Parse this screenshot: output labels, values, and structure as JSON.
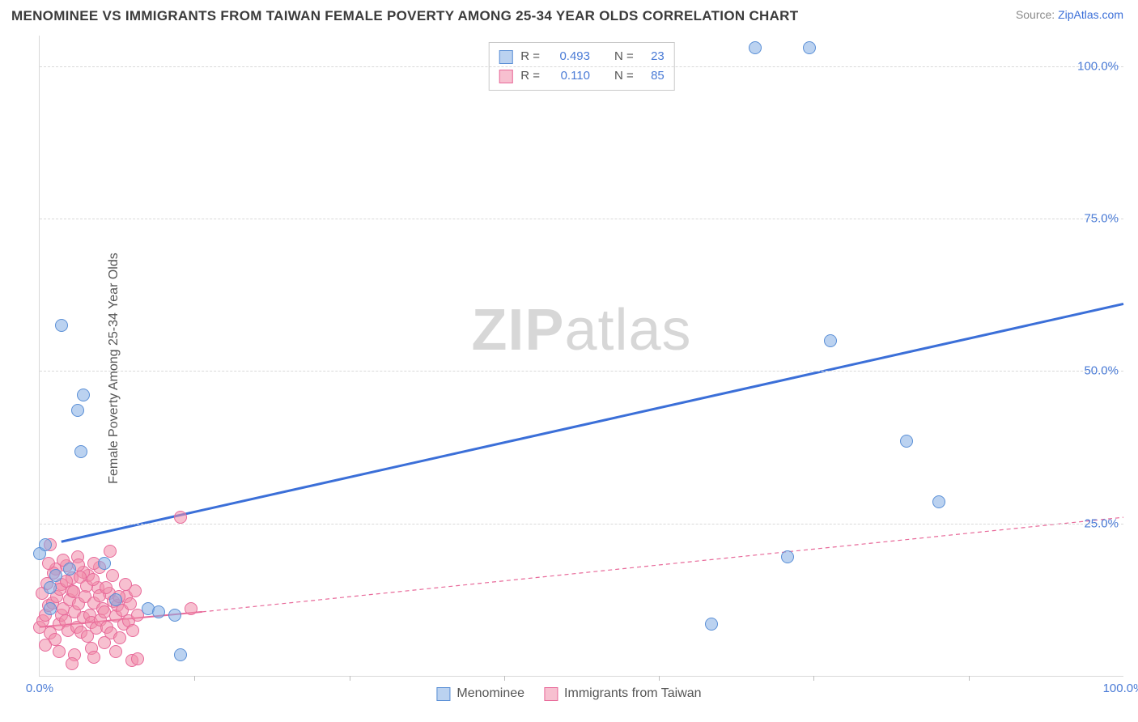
{
  "title": "MENOMINEE VS IMMIGRANTS FROM TAIWAN FEMALE POVERTY AMONG 25-34 YEAR OLDS CORRELATION CHART",
  "source_label": "Source: ",
  "source_link": "ZipAtlas.com",
  "ylabel": "Female Poverty Among 25-34 Year Olds",
  "watermark_a": "ZIP",
  "watermark_b": "atlas",
  "chart": {
    "type": "scatter",
    "xlim": [
      0,
      100
    ],
    "ylim": [
      0,
      105
    ],
    "gridlines_y": [
      25,
      50,
      75,
      100
    ],
    "ylabels": [
      {
        "v": 25,
        "t": "25.0%"
      },
      {
        "v": 50,
        "t": "50.0%"
      },
      {
        "v": 75,
        "t": "75.0%"
      },
      {
        "v": 100,
        "t": "100.0%"
      }
    ],
    "xlabels": [
      {
        "v": 0,
        "t": "0.0%"
      },
      {
        "v": 100,
        "t": "100.0%"
      }
    ],
    "xticks": [
      14.3,
      28.6,
      42.9,
      57.1,
      71.4,
      85.7
    ],
    "background": "#ffffff",
    "grid_color": "#d9d9d9",
    "marker_radius": 7,
    "series": {
      "blue": {
        "name": "Menominee",
        "color_fill": "rgba(132,173,228,.55)",
        "color_stroke": "#5a8fd6",
        "points": [
          [
            0,
            20
          ],
          [
            0.5,
            21.5
          ],
          [
            1,
            14.5
          ],
          [
            1.5,
            16.5
          ],
          [
            2,
            57.5
          ],
          [
            2.8,
            17.5
          ],
          [
            3.5,
            43.5
          ],
          [
            3.8,
            36.8
          ],
          [
            4,
            46
          ],
          [
            6,
            18.5
          ],
          [
            7,
            12.5
          ],
          [
            10,
            11
          ],
          [
            11,
            10.5
          ],
          [
            12.5,
            10
          ],
          [
            13,
            3.5
          ],
          [
            62,
            8.5
          ],
          [
            66,
            103
          ],
          [
            69,
            19.5
          ],
          [
            71,
            103
          ],
          [
            73,
            55
          ],
          [
            80,
            38.5
          ],
          [
            83,
            28.5
          ],
          [
            1,
            11
          ]
        ],
        "trend": {
          "x1": 2,
          "y1": 22,
          "x2": 100,
          "y2": 61,
          "width": 3,
          "dash": null,
          "ext_x1": 100,
          "ext_y1": 61,
          "ext_x2": 100,
          "ext_y2": 61
        }
      },
      "pink": {
        "name": "Immigrants from Taiwan",
        "color_fill": "rgba(240,140,170,.55)",
        "color_stroke": "#e86a9a",
        "points": [
          [
            0,
            8
          ],
          [
            0.3,
            9
          ],
          [
            0.5,
            10
          ],
          [
            0.8,
            11.5
          ],
          [
            1,
            7
          ],
          [
            1.2,
            12
          ],
          [
            1.4,
            6
          ],
          [
            1.6,
            13
          ],
          [
            1.8,
            8.5
          ],
          [
            2,
            10
          ],
          [
            2.2,
            11
          ],
          [
            2.4,
            9
          ],
          [
            2.6,
            7.5
          ],
          [
            2.8,
            12.5
          ],
          [
            3,
            14
          ],
          [
            3.2,
            10.5
          ],
          [
            3.4,
            8
          ],
          [
            3.6,
            11.8
          ],
          [
            3.8,
            7.2
          ],
          [
            4,
            9.5
          ],
          [
            4.2,
            13
          ],
          [
            4.4,
            6.5
          ],
          [
            4.6,
            10
          ],
          [
            4.8,
            8.8
          ],
          [
            5,
            12
          ],
          [
            5.2,
            7.8
          ],
          [
            5.4,
            14.5
          ],
          [
            5.6,
            9.2
          ],
          [
            5.8,
            11
          ],
          [
            6,
            10.5
          ],
          [
            6.2,
            8
          ],
          [
            6.4,
            13.5
          ],
          [
            6.6,
            7
          ],
          [
            6.8,
            12.2
          ],
          [
            7,
            9.8
          ],
          [
            7.2,
            11.5
          ],
          [
            7.4,
            6.2
          ],
          [
            7.6,
            10.8
          ],
          [
            7.8,
            8.5
          ],
          [
            8,
            13
          ],
          [
            8.2,
            9
          ],
          [
            8.4,
            11.8
          ],
          [
            8.6,
            7.5
          ],
          [
            8.8,
            14
          ],
          [
            9,
            10
          ],
          [
            1.5,
            17.5
          ],
          [
            2.5,
            18
          ],
          [
            3.5,
            19.5
          ],
          [
            4.5,
            16.5
          ],
          [
            5.5,
            17.8
          ],
          [
            6.5,
            20.5
          ],
          [
            1,
            21.5
          ],
          [
            2,
            15
          ],
          [
            3,
            16
          ],
          [
            4,
            17
          ],
          [
            5,
            18.5
          ],
          [
            0.5,
            5
          ],
          [
            1.8,
            4
          ],
          [
            3.2,
            3.5
          ],
          [
            4.8,
            4.5
          ],
          [
            6,
            5.5
          ],
          [
            0.2,
            13.5
          ],
          [
            0.7,
            15.2
          ],
          [
            1.3,
            16.8
          ],
          [
            1.9,
            14.2
          ],
          [
            2.5,
            15.5
          ],
          [
            3.1,
            13.8
          ],
          [
            3.7,
            16.2
          ],
          [
            4.3,
            14.8
          ],
          [
            4.9,
            15.8
          ],
          [
            5.5,
            13.2
          ],
          [
            6.1,
            14.5
          ],
          [
            6.7,
            16.5
          ],
          [
            7.3,
            13
          ],
          [
            7.9,
            15
          ],
          [
            8.5,
            2.5
          ],
          [
            3,
            2
          ],
          [
            5,
            3
          ],
          [
            7,
            4
          ],
          [
            9,
            2.8
          ],
          [
            0.8,
            18.5
          ],
          [
            2.2,
            19
          ],
          [
            3.6,
            18.2
          ],
          [
            13,
            26
          ],
          [
            14,
            11
          ]
        ],
        "trend": {
          "x1": 0,
          "y1": 8,
          "x2": 15,
          "y2": 10.5,
          "width": 2,
          "dash": "5,4",
          "ext_x1": 15,
          "ext_y1": 10.5,
          "ext_x2": 100,
          "ext_y2": 26
        }
      }
    }
  },
  "rbox": {
    "rows": [
      {
        "sw": "b",
        "r_label": "R =",
        "r": "0.493",
        "n_label": "N =",
        "n": "23"
      },
      {
        "sw": "p",
        "r_label": "R =",
        "r": "0.110",
        "n_label": "N =",
        "n": "85"
      }
    ]
  },
  "legend": {
    "items": [
      {
        "sw": "b",
        "label": "Menominee"
      },
      {
        "sw": "p",
        "label": "Immigrants from Taiwan"
      }
    ]
  }
}
